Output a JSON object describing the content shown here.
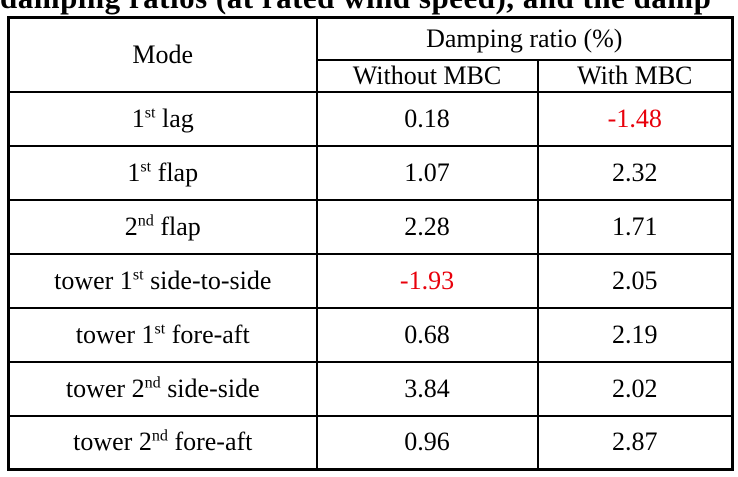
{
  "colors": {
    "highlight_negative": "#e8000b",
    "text": "#000000",
    "border": "#000000"
  },
  "cropped_caption": "damping ratios (at rated wind speed), and the damp",
  "table": {
    "header": {
      "mode": "Mode",
      "damping": "Damping ratio (%)",
      "without": "Without MBC",
      "with": "With MBC"
    },
    "rows": [
      {
        "mode_pre": "1",
        "mode_sup": "st",
        "mode_post": " lag",
        "without": "0.18",
        "with": "-1.48"
      },
      {
        "mode_pre": "1",
        "mode_sup": "st",
        "mode_post": " flap",
        "without": "1.07",
        "with": "2.32"
      },
      {
        "mode_pre": "2",
        "mode_sup": "nd",
        "mode_post": " flap",
        "without": "2.28",
        "with": "1.71"
      },
      {
        "mode_pre": "tower 1",
        "mode_sup": "st",
        "mode_post": " side-to-side",
        "without": "-1.93",
        "with": "2.05"
      },
      {
        "mode_pre": "tower 1",
        "mode_sup": "st",
        "mode_post": " fore-aft",
        "without": "0.68",
        "with": "2.19"
      },
      {
        "mode_pre": "tower 2",
        "mode_sup": "nd",
        "mode_post": " side-side",
        "without": "3.84",
        "with": "2.02"
      },
      {
        "mode_pre": "tower 2",
        "mode_sup": "nd",
        "mode_post": " fore-aft",
        "without": "0.96",
        "with": "2.87"
      }
    ]
  },
  "chart_data": {
    "type": "table",
    "columns": [
      "Mode",
      "Damping ratio (%) - Without MBC",
      "Damping ratio (%) - With MBC"
    ],
    "rows": [
      [
        "1st lag",
        0.18,
        -1.48
      ],
      [
        "1st flap",
        1.07,
        2.32
      ],
      [
        "2nd flap",
        2.28,
        1.71
      ],
      [
        "tower 1st side-to-side",
        -1.93,
        2.05
      ],
      [
        "tower 1st fore-aft",
        0.68,
        2.19
      ],
      [
        "tower 2nd side-side",
        3.84,
        2.02
      ],
      [
        "tower 2nd fore-aft",
        0.96,
        2.87
      ]
    ],
    "highlighted_negative_cells": [
      [
        "1st lag",
        "With MBC"
      ],
      [
        "tower 1st side-to-side",
        "Without MBC"
      ]
    ]
  }
}
